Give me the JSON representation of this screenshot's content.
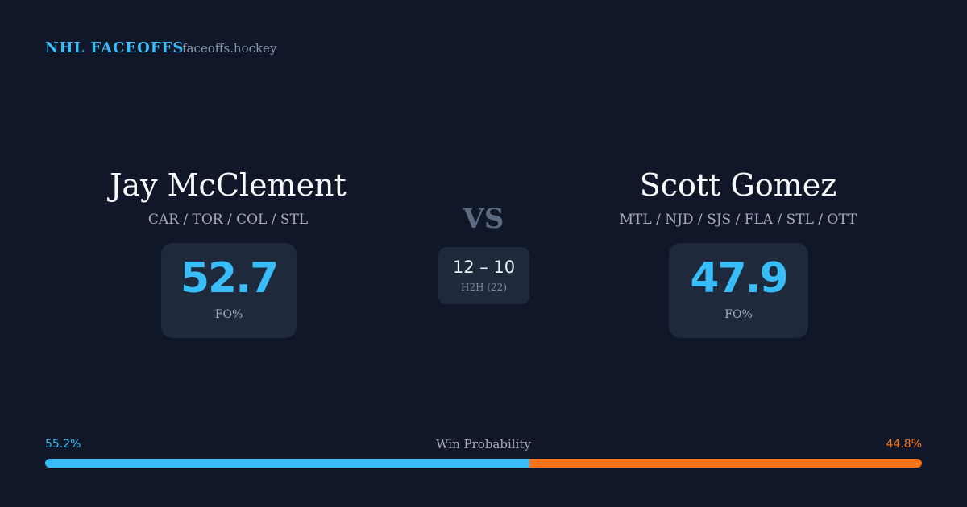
{
  "header": {
    "brand": "NHL FACEOFFS",
    "site": "faceoffs.hockey"
  },
  "players": [
    {
      "name": "Jay McClement",
      "teams": "CAR / TOR / COL / STL",
      "fo_pct": 52.7,
      "fo_label": "FO%"
    },
    {
      "name": "Scott Gomez",
      "teams": "MTL / NJD / SJS / FLA / STL / OTT",
      "fo_pct": 47.9,
      "fo_label": "FO%"
    }
  ],
  "vs": "VS",
  "h2h": {
    "score": "12 – 10",
    "label": "H2H (22)"
  },
  "win_probability": {
    "title": "Win Probability",
    "left": {
      "value": 55.2,
      "label": "55.2%",
      "color": "#38bdf8"
    },
    "right": {
      "value": 44.8,
      "label": "44.8%",
      "color": "#f97316"
    }
  }
}
